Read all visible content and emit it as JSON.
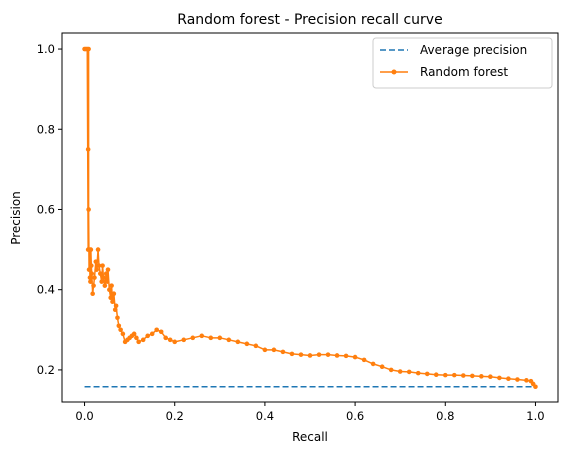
{
  "chart_data": {
    "type": "line",
    "title": "Random forest - Precision recall curve",
    "xlabel": "Recall",
    "ylabel": "Precision",
    "xlim": [
      -0.05,
      1.05
    ],
    "ylim": [
      0.12,
      1.04
    ],
    "xticks": [
      0.0,
      0.2,
      0.4,
      0.6,
      0.8,
      1.0
    ],
    "xtick_labels": [
      "0.0",
      "0.2",
      "0.4",
      "0.6",
      "0.8",
      "1.0"
    ],
    "yticks": [
      0.2,
      0.4,
      0.6,
      0.8,
      1.0
    ],
    "ytick_labels": [
      "0.2",
      "0.4",
      "0.6",
      "0.8",
      "1.0"
    ],
    "grid": false,
    "legend_position": "top-right",
    "series": [
      {
        "name": "Average precision",
        "style": "dashed",
        "color": "#1f77b4",
        "x": [
          0.0,
          1.0
        ],
        "y": [
          0.158,
          0.158
        ]
      },
      {
        "name": "Random forest",
        "style": "line-with-markers",
        "color": "#ff7f0e",
        "x": [
          0.0,
          0.003,
          0.006,
          0.008,
          0.008,
          0.009,
          0.009,
          0.01,
          0.011,
          0.012,
          0.013,
          0.014,
          0.015,
          0.016,
          0.018,
          0.02,
          0.022,
          0.025,
          0.027,
          0.03,
          0.032,
          0.035,
          0.038,
          0.04,
          0.042,
          0.045,
          0.048,
          0.05,
          0.052,
          0.055,
          0.058,
          0.06,
          0.062,
          0.065,
          0.068,
          0.07,
          0.073,
          0.076,
          0.08,
          0.085,
          0.09,
          0.095,
          0.1,
          0.105,
          0.11,
          0.115,
          0.12,
          0.13,
          0.14,
          0.15,
          0.16,
          0.17,
          0.18,
          0.19,
          0.2,
          0.22,
          0.24,
          0.26,
          0.28,
          0.3,
          0.32,
          0.34,
          0.36,
          0.38,
          0.4,
          0.42,
          0.44,
          0.46,
          0.48,
          0.5,
          0.52,
          0.54,
          0.56,
          0.58,
          0.6,
          0.62,
          0.64,
          0.66,
          0.68,
          0.7,
          0.72,
          0.74,
          0.76,
          0.78,
          0.8,
          0.82,
          0.84,
          0.86,
          0.88,
          0.9,
          0.92,
          0.94,
          0.96,
          0.98,
          0.99,
          0.995,
          1.0
        ],
        "y": [
          1.0,
          1.0,
          1.0,
          0.5,
          0.75,
          1.0,
          0.6,
          0.45,
          0.5,
          0.43,
          0.42,
          0.5,
          0.46,
          0.44,
          0.39,
          0.41,
          0.43,
          0.47,
          0.45,
          0.5,
          0.46,
          0.44,
          0.42,
          0.46,
          0.43,
          0.41,
          0.44,
          0.42,
          0.45,
          0.4,
          0.38,
          0.41,
          0.37,
          0.39,
          0.35,
          0.36,
          0.33,
          0.31,
          0.3,
          0.29,
          0.27,
          0.275,
          0.28,
          0.285,
          0.29,
          0.28,
          0.27,
          0.275,
          0.285,
          0.29,
          0.3,
          0.295,
          0.28,
          0.275,
          0.27,
          0.275,
          0.28,
          0.285,
          0.28,
          0.28,
          0.275,
          0.27,
          0.265,
          0.26,
          0.25,
          0.25,
          0.245,
          0.24,
          0.238,
          0.236,
          0.238,
          0.238,
          0.236,
          0.235,
          0.232,
          0.225,
          0.215,
          0.208,
          0.2,
          0.196,
          0.195,
          0.192,
          0.19,
          0.188,
          0.187,
          0.187,
          0.186,
          0.185,
          0.184,
          0.183,
          0.18,
          0.178,
          0.176,
          0.174,
          0.172,
          0.165,
          0.158
        ]
      }
    ]
  }
}
